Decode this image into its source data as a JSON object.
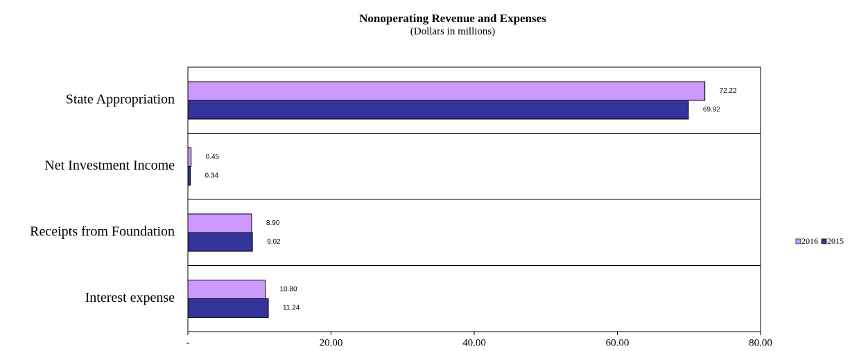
{
  "chart_data": {
    "type": "hbar",
    "title": "Nonoperating Revenue and Expenses",
    "subtitle": "(Dollars in millions)",
    "categories": [
      "State Appropriation",
      "Net Investment Income",
      "Receipts from Foundation",
      "Interest expense"
    ],
    "series": [
      {
        "name": "2016",
        "color": "#cc99ff",
        "values": [
          72.22,
          0.45,
          8.9,
          10.8
        ],
        "value_labels": [
          "72.22",
          "0.45",
          "8.90",
          "10.80"
        ]
      },
      {
        "name": "2015",
        "color": "#333399",
        "values": [
          69.92,
          0.34,
          9.02,
          11.24
        ],
        "value_labels": [
          "69.92",
          "0.34",
          "9.02",
          "11.24"
        ]
      }
    ],
    "xlim": [
      0,
      80
    ],
    "xticks": [
      {
        "value": 0,
        "label": "-"
      },
      {
        "value": 20,
        "label": "20.00"
      },
      {
        "value": 40,
        "label": "40.00"
      },
      {
        "value": 60,
        "label": "60.00"
      },
      {
        "value": 80,
        "label": "80.00"
      }
    ],
    "legend": "right"
  }
}
